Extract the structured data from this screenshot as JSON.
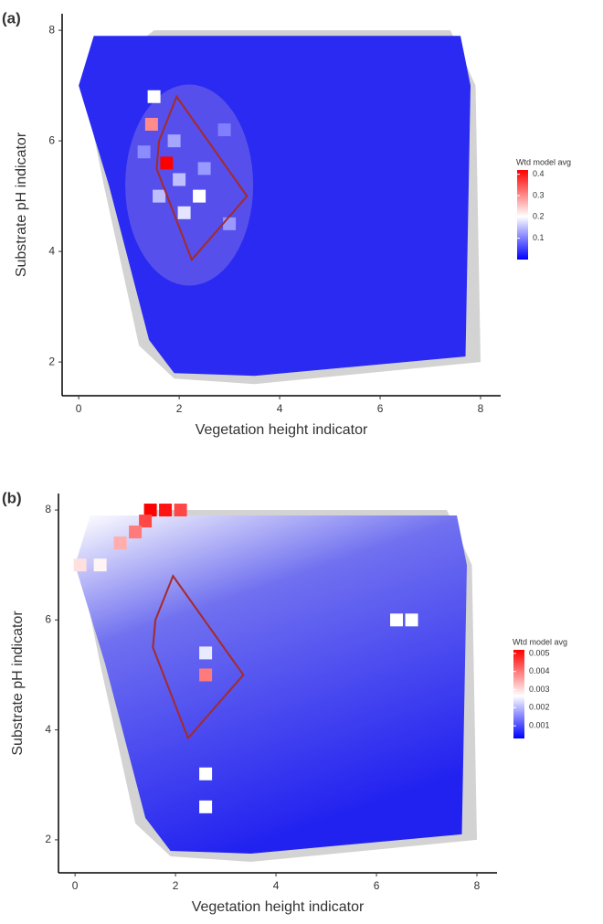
{
  "chart_data": [
    {
      "type": "scatter",
      "panel_label": "(a)",
      "x_label": "Vegetation height indicator",
      "y_label": "Substrate pH indicator",
      "xlim": [
        -0.33,
        8.4
      ],
      "ylim": [
        1.39,
        8.3
      ],
      "xticks": [
        0,
        2,
        4,
        6,
        8
      ],
      "yticks": [
        2,
        4,
        6,
        8
      ],
      "hull": {
        "x": [
          1.5,
          7.4,
          7.9,
          8.0,
          3.5,
          1.9,
          1.2,
          0.5,
          0.1
        ],
        "y": [
          8.0,
          8.0,
          7.0,
          2.0,
          1.6,
          1.7,
          2.3,
          5.2,
          7.0
        ]
      },
      "region": {
        "x": [
          1.95,
          3.35,
          2.25,
          1.55,
          1.6
        ],
        "y": [
          6.8,
          5.0,
          3.85,
          5.5,
          6.0
        ]
      },
      "points": {
        "x": [
          1.75,
          1.45,
          1.5,
          2.4,
          2.1,
          2.0,
          1.6,
          3.0,
          2.5,
          1.9,
          2.9,
          1.3
        ],
        "y": [
          5.6,
          6.3,
          6.8,
          5.0,
          4.7,
          5.3,
          5.0,
          4.5,
          5.5,
          6.0,
          6.2,
          5.8
        ],
        "values": [
          0.42,
          0.3,
          0.2,
          0.2,
          0.18,
          0.15,
          0.15,
          0.12,
          0.12,
          0.13,
          0.1,
          0.11
        ]
      },
      "legend_title": "Wtd model avg",
      "colorbar_lim": [
        0,
        0.42
      ],
      "colorbar_ticks": [
        0.1,
        0.2,
        0.3,
        0.4
      ],
      "colors": [
        "#0000ff",
        "#ffffff",
        "#ff0000"
      ],
      "color_mid": 0.2
    },
    {
      "type": "scatter",
      "panel_label": "(b)",
      "x_label": "Vegetation height indicator",
      "y_label": "Substrate pH indicator",
      "xlim": [
        -0.33,
        8.4
      ],
      "ylim": [
        1.4,
        8.3
      ],
      "xticks": [
        0,
        2,
        4,
        6,
        8
      ],
      "yticks": [
        2,
        4,
        6,
        8
      ],
      "hull": {
        "x": [
          1.5,
          7.4,
          7.9,
          8.0,
          3.5,
          1.9,
          1.2,
          0.5,
          0.1
        ],
        "y": [
          8.0,
          8.0,
          7.0,
          2.0,
          1.6,
          1.7,
          2.3,
          5.2,
          7.0
        ]
      },
      "region": {
        "x": [
          1.95,
          3.35,
          2.25,
          1.55,
          1.6
        ],
        "y": [
          6.8,
          5.0,
          3.85,
          5.5,
          6.0
        ]
      },
      "points": {
        "x": [
          1.5,
          1.8,
          2.1,
          1.4,
          1.2,
          0.9,
          0.1,
          0.5,
          2.6,
          2.6,
          6.4,
          6.7,
          2.6,
          2.6
        ],
        "y": [
          8.0,
          8.0,
          8.0,
          7.8,
          7.6,
          7.4,
          7.0,
          7.0,
          5.0,
          5.4,
          6.0,
          6.0,
          3.2,
          2.6
        ],
        "values": [
          0.0055,
          0.005,
          0.0045,
          0.0045,
          0.004,
          0.0035,
          0.003,
          0.0028,
          0.004,
          0.0025,
          0.0027,
          0.0027,
          0.0027,
          0.0027
        ]
      },
      "legend_title": "Wtd model avg",
      "colorbar_lim": [
        0.0003,
        0.0052
      ],
      "colorbar_ticks": [
        0.001,
        0.002,
        0.003,
        0.004,
        0.005
      ],
      "colors": [
        "#0000ff",
        "#ffffff",
        "#ff0000"
      ],
      "color_mid": 0.0027
    }
  ]
}
